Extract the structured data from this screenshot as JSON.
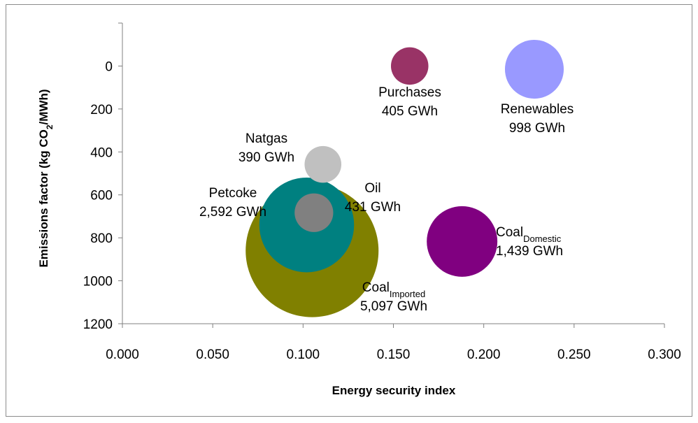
{
  "chart_data": {
    "type": "scatter",
    "subtype": "bubble",
    "xlabel": "Energy security index",
    "ylabel": {
      "parts": [
        {
          "text": "Emissions factor (kg CO"
        },
        {
          "text": "2",
          "sub": true
        },
        {
          "text": "/MWh)"
        }
      ]
    },
    "xlim": [
      0.0,
      0.3
    ],
    "ylim": [
      -200,
      1200
    ],
    "y_inverted": true,
    "x_ticks": [
      "0.000",
      "0.050",
      "0.100",
      "0.150",
      "0.200",
      "0.250",
      "0.300"
    ],
    "x_tick_values": [
      0.0,
      0.05,
      0.1,
      0.15,
      0.2,
      0.25,
      0.3
    ],
    "y_ticks": [
      "0",
      "200",
      "400",
      "600",
      "800",
      "1000",
      "1200"
    ],
    "y_tick_values": [
      0,
      200,
      400,
      600,
      800,
      1000,
      1200
    ],
    "grid": false,
    "legend": "none",
    "bubble_size_unit": "GWh",
    "series": [
      {
        "name": "Coal Imported",
        "x": 0.105,
        "y": 860,
        "size": 5097,
        "color": "#808000",
        "label": [
          {
            "text": "Coal"
          },
          {
            "text": "Imported",
            "sub": true
          }
        ],
        "value_label": "5,097 GWh"
      },
      {
        "name": "Petcoke",
        "x": 0.102,
        "y": 740,
        "size": 2592,
        "color": "#008080",
        "label": [
          {
            "text": "Petcoke"
          }
        ],
        "value_label": "2,592 GWh"
      },
      {
        "name": "Oil",
        "x": 0.106,
        "y": 683,
        "size": 431,
        "color": "#808080",
        "label": [
          {
            "text": "Oil"
          }
        ],
        "value_label": "431 GWh"
      },
      {
        "name": "Natgas",
        "x": 0.111,
        "y": 458,
        "size": 390,
        "color": "#c0c0c0",
        "label": [
          {
            "text": "Natgas"
          }
        ],
        "value_label": "390 GWh"
      },
      {
        "name": "Purchases",
        "x": 0.159,
        "y": 0,
        "size": 405,
        "color": "#993366",
        "label": [
          {
            "text": "Purchases"
          }
        ],
        "value_label": "405 GWh"
      },
      {
        "name": "Renewables",
        "x": 0.228,
        "y": 15,
        "size": 998,
        "color": "#9999ff",
        "label": [
          {
            "text": "Renewables"
          }
        ],
        "value_label": "998 GWh"
      },
      {
        "name": "Coal Domestic",
        "x": 0.188,
        "y": 817,
        "size": 1439,
        "color": "#800080",
        "label": [
          {
            "text": "Coal"
          },
          {
            "text": "Domestic",
            "sub": true
          }
        ],
        "value_label": "1,439 GWh"
      }
    ]
  }
}
